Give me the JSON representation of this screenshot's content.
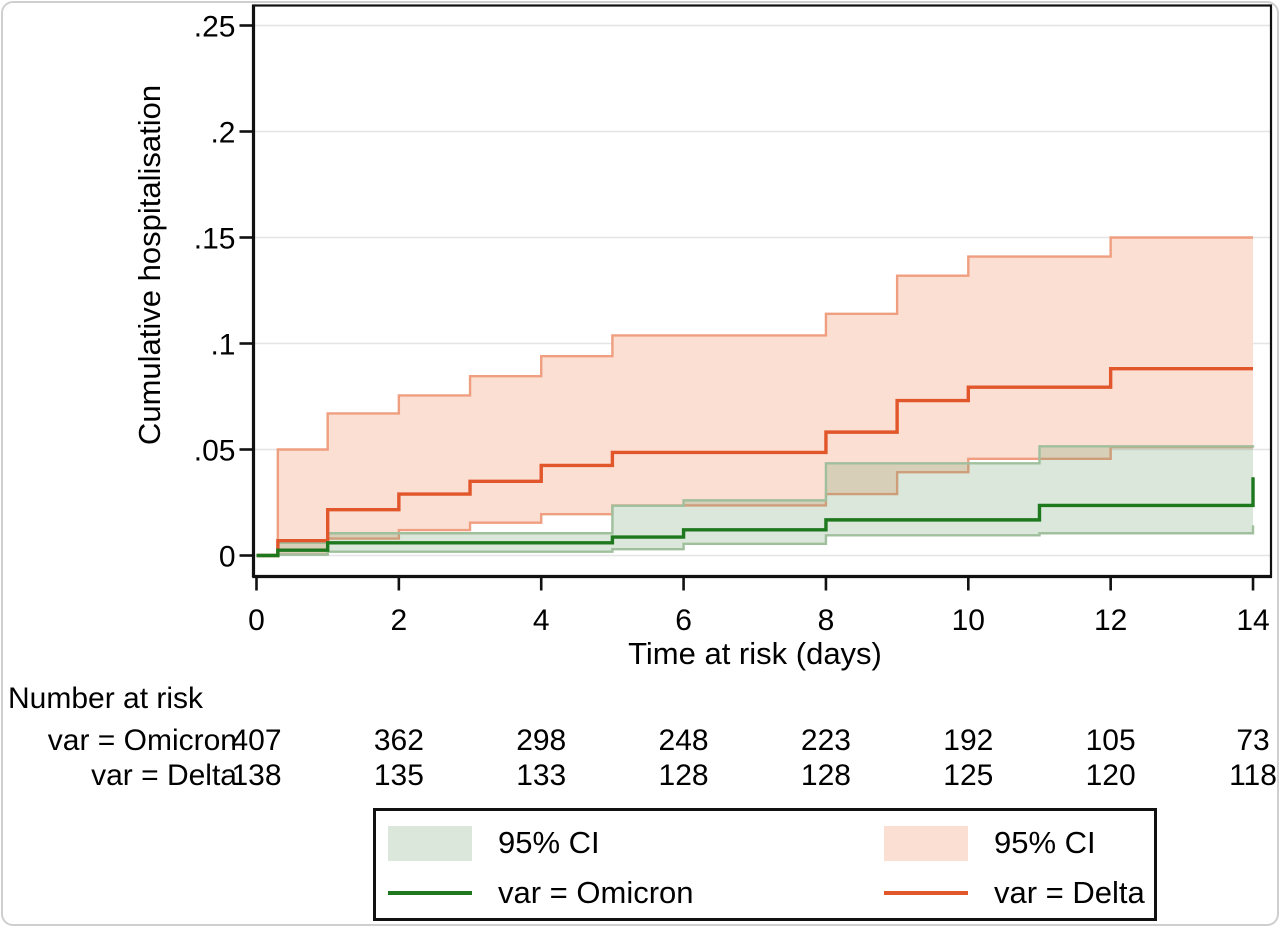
{
  "chart_data": {
    "type": "line",
    "subtype": "kaplan-meier-cumulative-incidence-step",
    "title": "",
    "xlabel": "Time at risk (days)",
    "ylabel": "Cumulative hospitalisation",
    "xlim": [
      0,
      14
    ],
    "ylim": [
      0,
      0.25
    ],
    "grid": "horizontal",
    "x_ticks": [
      0,
      2,
      4,
      6,
      8,
      10,
      12,
      14
    ],
    "y_ticks": [
      0,
      0.05,
      0.1,
      0.15,
      0.2,
      0.25
    ],
    "y_tick_labels": [
      "0",
      ".05",
      ".1",
      ".15",
      ".2",
      ".25"
    ],
    "x_end": 14,
    "series": [
      {
        "name": "var = Omicron",
        "line_color": "#1e791e",
        "ci_fill": "rgba(106,158,106,0.25)",
        "ci_fill_flat": "#dbe7da",
        "ci_edge_color": "#a0bf9c",
        "t": [
          0,
          0.3,
          1,
          5,
          6,
          8,
          11,
          14
        ],
        "y": [
          0,
          0.0025,
          0.006,
          0.0087,
          0.0121,
          0.0168,
          0.0236,
          0.0369
        ],
        "lower": [
          0,
          0.0004,
          0.0018,
          0.003,
          0.0055,
          0.0095,
          0.0105,
          0.0142
        ],
        "upper": [
          0,
          0.006,
          0.0105,
          0.0235,
          0.026,
          0.0435,
          0.0515,
          0.052
        ]
      },
      {
        "name": "var = Delta",
        "line_color": "#e1562a",
        "ci_fill": "#fcdfd3",
        "ci_fill_flat": "#fcdfd3",
        "ci_edge_color": "#ef9e7f",
        "t": [
          0,
          0.3,
          1,
          2,
          3,
          4,
          5,
          8,
          9,
          10,
          12
        ],
        "y": [
          0,
          0.007,
          0.0216,
          0.029,
          0.035,
          0.0425,
          0.0486,
          0.0582,
          0.0731,
          0.0794,
          0.0881
        ],
        "lower": [
          0,
          0.0005,
          0.008,
          0.012,
          0.0155,
          0.0195,
          0.0236,
          0.029,
          0.0393,
          0.0456,
          0.0511
        ],
        "upper": [
          0,
          0.05,
          0.067,
          0.0755,
          0.0846,
          0.094,
          0.1038,
          0.114,
          0.132,
          0.141,
          0.15
        ]
      }
    ],
    "at_risk": {
      "title": "Number at risk",
      "times": [
        0,
        2,
        4,
        6,
        8,
        10,
        12,
        14
      ],
      "rows": [
        {
          "label": "var = Omicron",
          "counts": [
            407,
            362,
            298,
            248,
            223,
            192,
            105,
            73
          ]
        },
        {
          "label": "var = Delta",
          "counts": [
            138,
            135,
            133,
            128,
            128,
            125,
            120,
            118
          ]
        }
      ]
    },
    "legend": {
      "items": [
        {
          "swatch": "omicron-ci-fill",
          "label": "95% CI"
        },
        {
          "swatch": "delta-ci-fill",
          "label": "95% CI"
        },
        {
          "swatch": "omicron-line",
          "label": "var = Omicron"
        },
        {
          "swatch": "delta-line",
          "label": "var = Delta"
        }
      ]
    },
    "colors": {
      "grid": "#e4e4e4",
      "axis": "#111111"
    }
  }
}
